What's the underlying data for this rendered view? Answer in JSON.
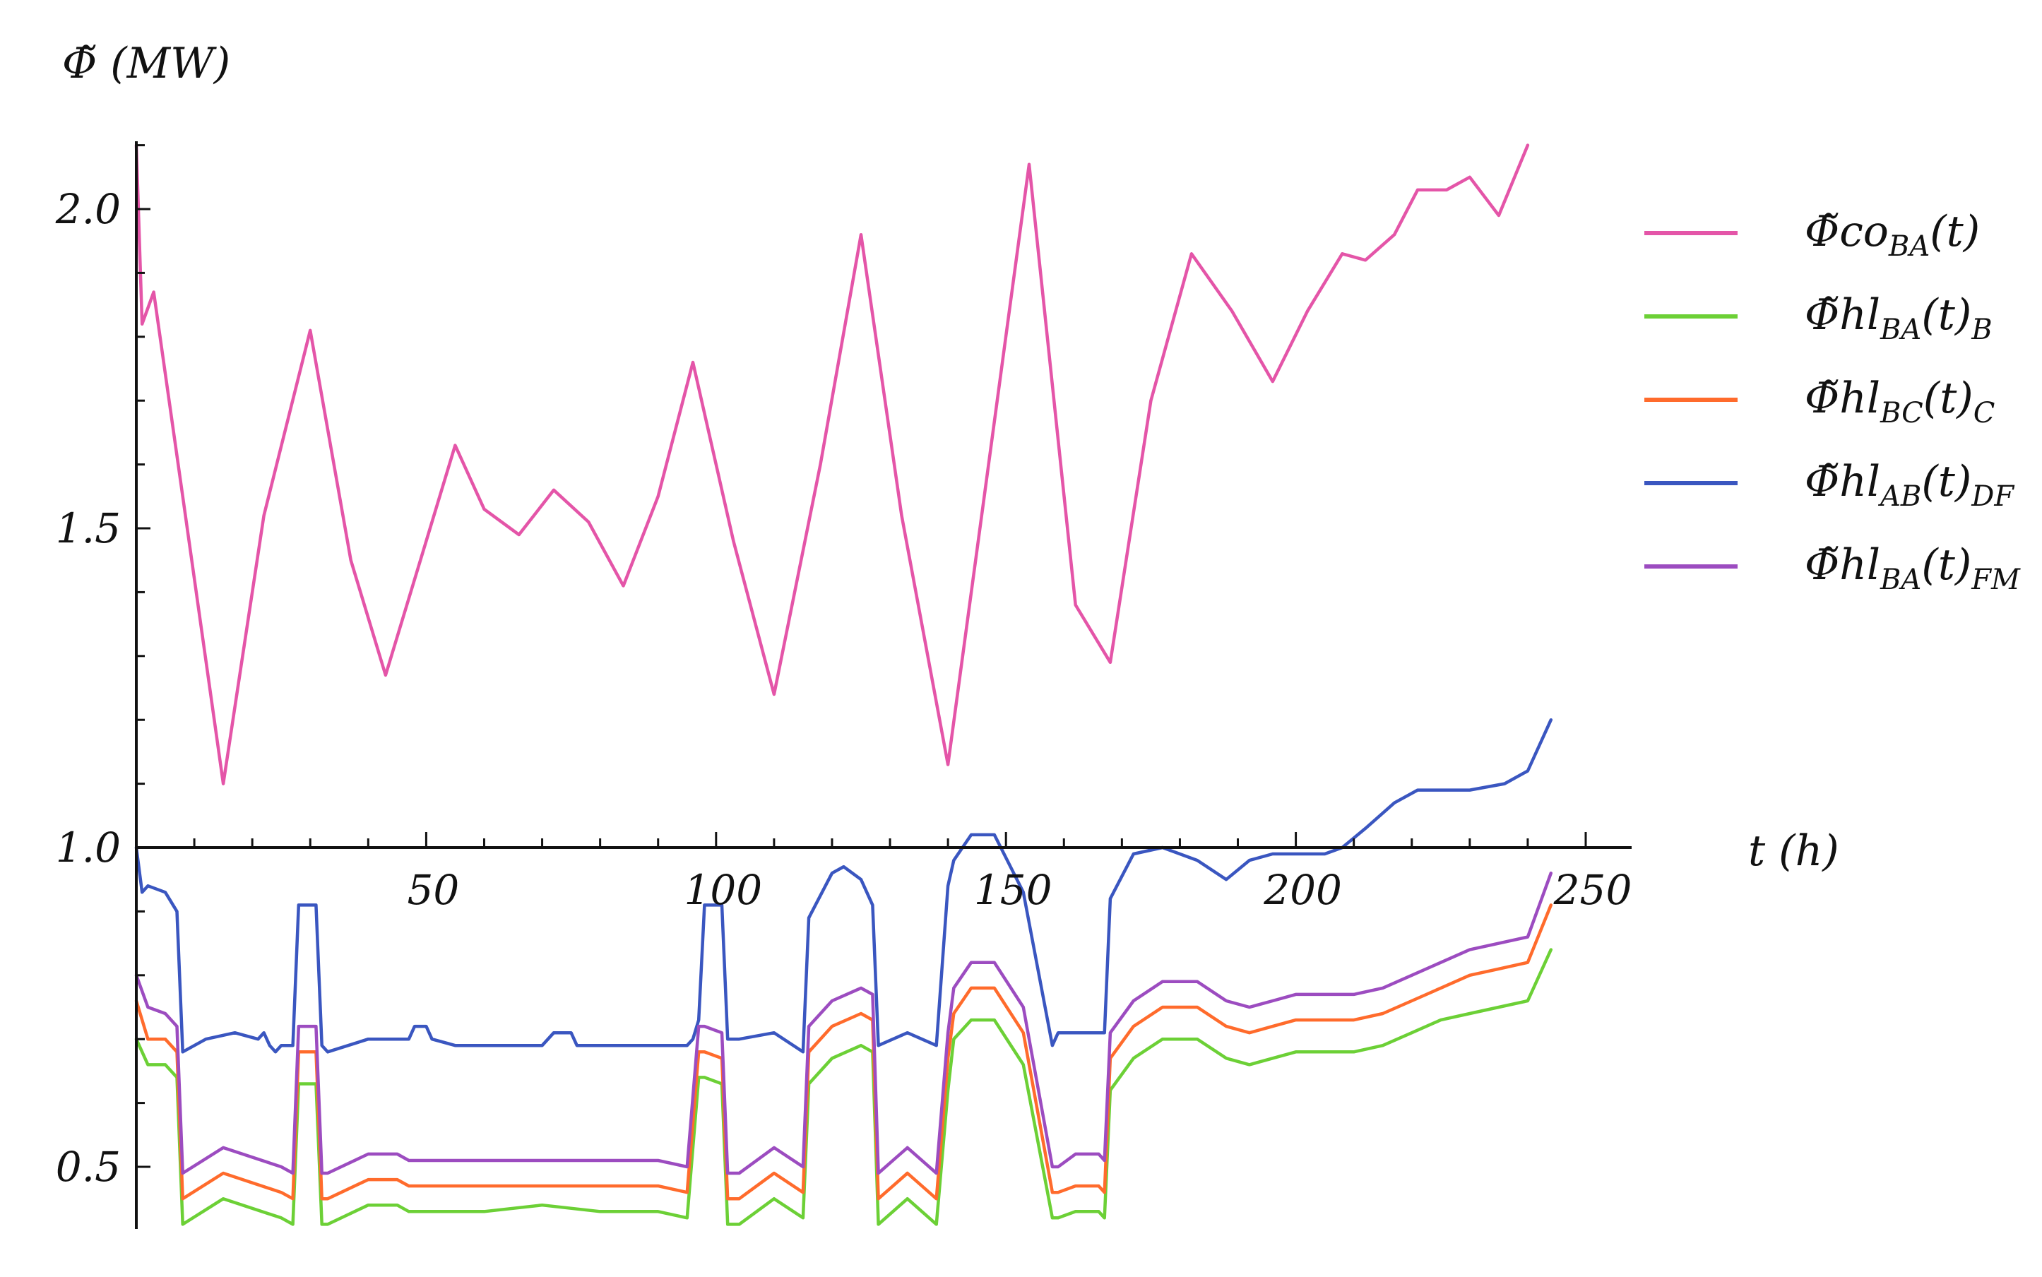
{
  "chart_data": {
    "type": "line",
    "ylabel": "Φ̃ (MW)",
    "xlabel": "t (h)",
    "xlim": [
      0,
      250
    ],
    "ylim": [
      0.4,
      2.1
    ],
    "x_origin_y": 1.0,
    "x_ticks": [
      50,
      100,
      150,
      200,
      250
    ],
    "y_ticks": [
      0.5,
      1.0,
      1.5,
      2.0
    ],
    "y_tick_labels": [
      "0.5",
      "1.0",
      "1.5",
      "2.0"
    ],
    "grid": false,
    "legend_position": "top-right",
    "series": [
      {
        "name": "Φ̃co_BA(t)",
        "label_base": "Φ̃co",
        "label_sub": "BA",
        "label_tail": "(t)",
        "label_tail_sub": "",
        "color": "#e455a8",
        "x": [
          0,
          1,
          3,
          8,
          15,
          22,
          30,
          37,
          43,
          50,
          55,
          60,
          66,
          72,
          78,
          84,
          90,
          96,
          103,
          110,
          118,
          125,
          132,
          140,
          147,
          154,
          162,
          168,
          175,
          182,
          189,
          196,
          202,
          208,
          212,
          217,
          221,
          226,
          230,
          235,
          240
        ],
        "y": [
          2.1,
          1.82,
          1.87,
          1.55,
          1.1,
          1.52,
          1.81,
          1.45,
          1.27,
          1.48,
          1.63,
          1.53,
          1.49,
          1.56,
          1.51,
          1.41,
          1.55,
          1.76,
          1.48,
          1.24,
          1.6,
          1.96,
          1.52,
          1.13,
          1.6,
          2.07,
          1.38,
          1.29,
          1.7,
          1.93,
          1.84,
          1.73,
          1.84,
          1.93,
          1.92,
          1.96,
          2.03,
          2.03,
          2.05,
          1.99,
          2.1
        ]
      },
      {
        "name": "Φ̃hl_BA(t)_B",
        "label_base": "Φ̃hl",
        "label_sub": "BA",
        "label_tail": "(t)",
        "label_tail_sub": "B",
        "color": "#6cd036",
        "x": [
          0,
          2,
          5,
          7,
          8,
          15,
          25,
          27,
          28,
          31,
          32,
          33,
          40,
          45,
          47,
          50,
          60,
          70,
          80,
          90,
          95,
          97,
          98,
          101,
          102,
          104,
          110,
          115,
          116,
          120,
          125,
          127,
          128,
          133,
          138,
          140,
          141,
          144,
          148,
          153,
          158,
          159,
          162,
          166,
          167,
          168,
          172,
          177,
          183,
          188,
          192,
          196,
          200,
          205,
          210,
          215,
          220,
          225,
          230,
          235,
          240,
          244
        ],
        "y": [
          0.7,
          0.66,
          0.66,
          0.64,
          0.41,
          0.45,
          0.42,
          0.41,
          0.63,
          0.63,
          0.41,
          0.41,
          0.44,
          0.44,
          0.43,
          0.43,
          0.43,
          0.44,
          0.43,
          0.43,
          0.42,
          0.64,
          0.64,
          0.63,
          0.41,
          0.41,
          0.45,
          0.42,
          0.63,
          0.67,
          0.69,
          0.68,
          0.41,
          0.45,
          0.41,
          0.62,
          0.7,
          0.73,
          0.73,
          0.66,
          0.42,
          0.42,
          0.43,
          0.43,
          0.42,
          0.62,
          0.67,
          0.7,
          0.7,
          0.67,
          0.66,
          0.67,
          0.68,
          0.68,
          0.68,
          0.69,
          0.71,
          0.73,
          0.74,
          0.75,
          0.76,
          0.84
        ]
      },
      {
        "name": "Φ̃hl_BC(t)_C",
        "label_base": "Φ̃hl",
        "label_sub": "BC",
        "label_tail": "(t)",
        "label_tail_sub": "C",
        "color": "#ff6b2c",
        "x": [
          0,
          2,
          5,
          7,
          8,
          15,
          25,
          27,
          28,
          31,
          32,
          33,
          40,
          45,
          47,
          50,
          60,
          70,
          80,
          90,
          95,
          97,
          98,
          101,
          102,
          104,
          110,
          115,
          116,
          120,
          125,
          127,
          128,
          133,
          138,
          140,
          141,
          144,
          148,
          153,
          158,
          159,
          162,
          166,
          167,
          168,
          172,
          177,
          183,
          188,
          192,
          196,
          200,
          205,
          210,
          215,
          220,
          225,
          230,
          235,
          240,
          244
        ],
        "y": [
          0.76,
          0.7,
          0.7,
          0.68,
          0.45,
          0.49,
          0.46,
          0.45,
          0.68,
          0.68,
          0.45,
          0.45,
          0.48,
          0.48,
          0.47,
          0.47,
          0.47,
          0.47,
          0.47,
          0.47,
          0.46,
          0.68,
          0.68,
          0.67,
          0.45,
          0.45,
          0.49,
          0.46,
          0.68,
          0.72,
          0.74,
          0.73,
          0.45,
          0.49,
          0.45,
          0.67,
          0.74,
          0.78,
          0.78,
          0.71,
          0.46,
          0.46,
          0.47,
          0.47,
          0.46,
          0.67,
          0.72,
          0.75,
          0.75,
          0.72,
          0.71,
          0.72,
          0.73,
          0.73,
          0.73,
          0.74,
          0.76,
          0.78,
          0.8,
          0.81,
          0.82,
          0.91
        ]
      },
      {
        "name": "Φ̃hl_AB(t)_DF",
        "label_base": "Φ̃hl",
        "label_sub": "AB",
        "label_tail": "(t)",
        "label_tail_sub": "DF",
        "color": "#3a56c0",
        "x": [
          0,
          1,
          2,
          5,
          7,
          8,
          12,
          17,
          21,
          22,
          23,
          24,
          25,
          27,
          28,
          31,
          32,
          33,
          40,
          47,
          48,
          50,
          51,
          55,
          60,
          70,
          72,
          75,
          76,
          82,
          90,
          95,
          96,
          97,
          98,
          101,
          102,
          104,
          110,
          115,
          116,
          120,
          122,
          125,
          127,
          128,
          133,
          138,
          140,
          141,
          144,
          148,
          153,
          158,
          159,
          162,
          166,
          167,
          168,
          172,
          177,
          183,
          188,
          192,
          196,
          200,
          205,
          208,
          212,
          217,
          221,
          226,
          230,
          236,
          240,
          244
        ],
        "y": [
          1.0,
          0.93,
          0.94,
          0.93,
          0.9,
          0.68,
          0.7,
          0.71,
          0.7,
          0.71,
          0.69,
          0.68,
          0.69,
          0.69,
          0.91,
          0.91,
          0.69,
          0.68,
          0.7,
          0.7,
          0.72,
          0.72,
          0.7,
          0.69,
          0.69,
          0.69,
          0.71,
          0.71,
          0.69,
          0.69,
          0.69,
          0.69,
          0.7,
          0.73,
          0.91,
          0.91,
          0.7,
          0.7,
          0.71,
          0.68,
          0.89,
          0.96,
          0.97,
          0.95,
          0.91,
          0.69,
          0.71,
          0.69,
          0.94,
          0.98,
          1.02,
          1.02,
          0.93,
          0.69,
          0.71,
          0.71,
          0.71,
          0.71,
          0.92,
          0.99,
          1.0,
          0.98,
          0.95,
          0.98,
          0.99,
          0.99,
          0.99,
          1.0,
          1.03,
          1.07,
          1.09,
          1.09,
          1.09,
          1.1,
          1.12,
          1.2
        ]
      },
      {
        "name": "Φ̃hl_BA(t)_FM",
        "label_base": "Φ̃hl",
        "label_sub": "BA",
        "label_tail": "(t)",
        "label_tail_sub": "FM",
        "color": "#9c4cc0",
        "x": [
          0,
          2,
          5,
          7,
          8,
          15,
          25,
          27,
          28,
          31,
          32,
          33,
          40,
          45,
          47,
          50,
          60,
          70,
          80,
          90,
          95,
          97,
          98,
          101,
          102,
          104,
          110,
          115,
          116,
          120,
          125,
          127,
          128,
          133,
          138,
          140,
          141,
          144,
          148,
          153,
          158,
          159,
          162,
          166,
          167,
          168,
          172,
          177,
          183,
          188,
          192,
          196,
          200,
          205,
          210,
          215,
          220,
          225,
          230,
          235,
          240,
          244
        ],
        "y": [
          0.8,
          0.75,
          0.74,
          0.72,
          0.49,
          0.53,
          0.5,
          0.49,
          0.72,
          0.72,
          0.49,
          0.49,
          0.52,
          0.52,
          0.51,
          0.51,
          0.51,
          0.51,
          0.51,
          0.51,
          0.5,
          0.72,
          0.72,
          0.71,
          0.49,
          0.49,
          0.53,
          0.5,
          0.72,
          0.76,
          0.78,
          0.77,
          0.49,
          0.53,
          0.49,
          0.71,
          0.78,
          0.82,
          0.82,
          0.75,
          0.5,
          0.5,
          0.52,
          0.52,
          0.51,
          0.71,
          0.76,
          0.79,
          0.79,
          0.76,
          0.75,
          0.76,
          0.77,
          0.77,
          0.77,
          0.78,
          0.8,
          0.82,
          0.84,
          0.85,
          0.86,
          0.96
        ]
      }
    ]
  }
}
